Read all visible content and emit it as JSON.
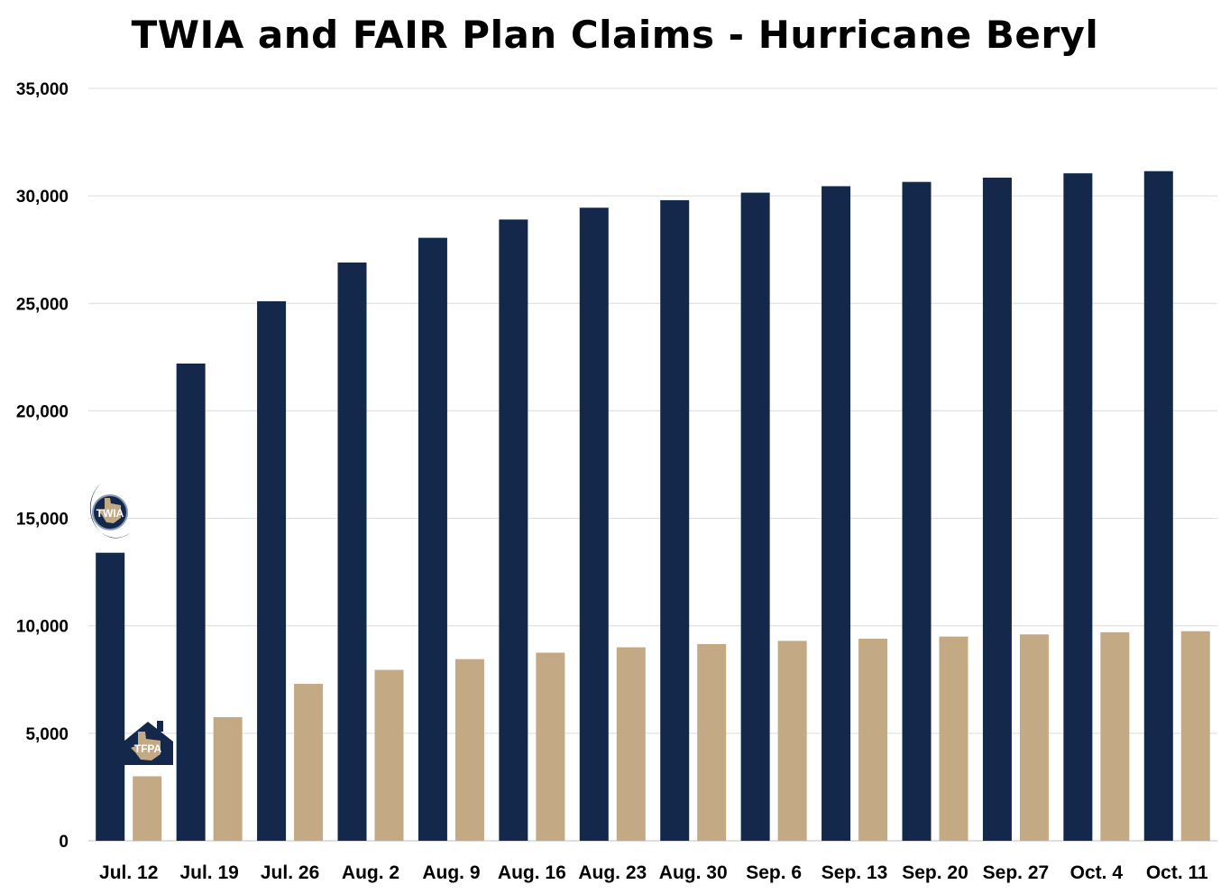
{
  "chart_data": {
    "type": "bar",
    "title": "TWIA and FAIR Plan Claims - Hurricane Beryl",
    "xlabel": "",
    "ylabel": "",
    "categories": [
      "Jul. 12",
      "Jul. 19",
      "Jul. 26",
      "Aug. 2",
      "Aug. 9",
      "Aug. 16",
      "Aug. 23",
      "Aug. 30",
      "Sep. 6",
      "Sep. 13",
      "Sep. 20",
      "Sep. 27",
      "Oct. 4",
      "Oct. 11"
    ],
    "series": [
      {
        "name": "TWIA",
        "color": "#14284b",
        "values": [
          13400,
          22200,
          25100,
          26900,
          28050,
          28900,
          29450,
          29800,
          30150,
          30450,
          30650,
          30850,
          31050,
          31150
        ]
      },
      {
        "name": "TFPA",
        "color": "#c4aa84",
        "values": [
          3000,
          5750,
          7300,
          7950,
          8450,
          8750,
          9000,
          9150,
          9300,
          9400,
          9500,
          9600,
          9700,
          9750
        ]
      }
    ],
    "ylim": [
      0,
      35000
    ],
    "yticks": [
      0,
      5000,
      10000,
      15000,
      20000,
      25000,
      30000,
      35000
    ],
    "grid": true,
    "legend": "none"
  }
}
